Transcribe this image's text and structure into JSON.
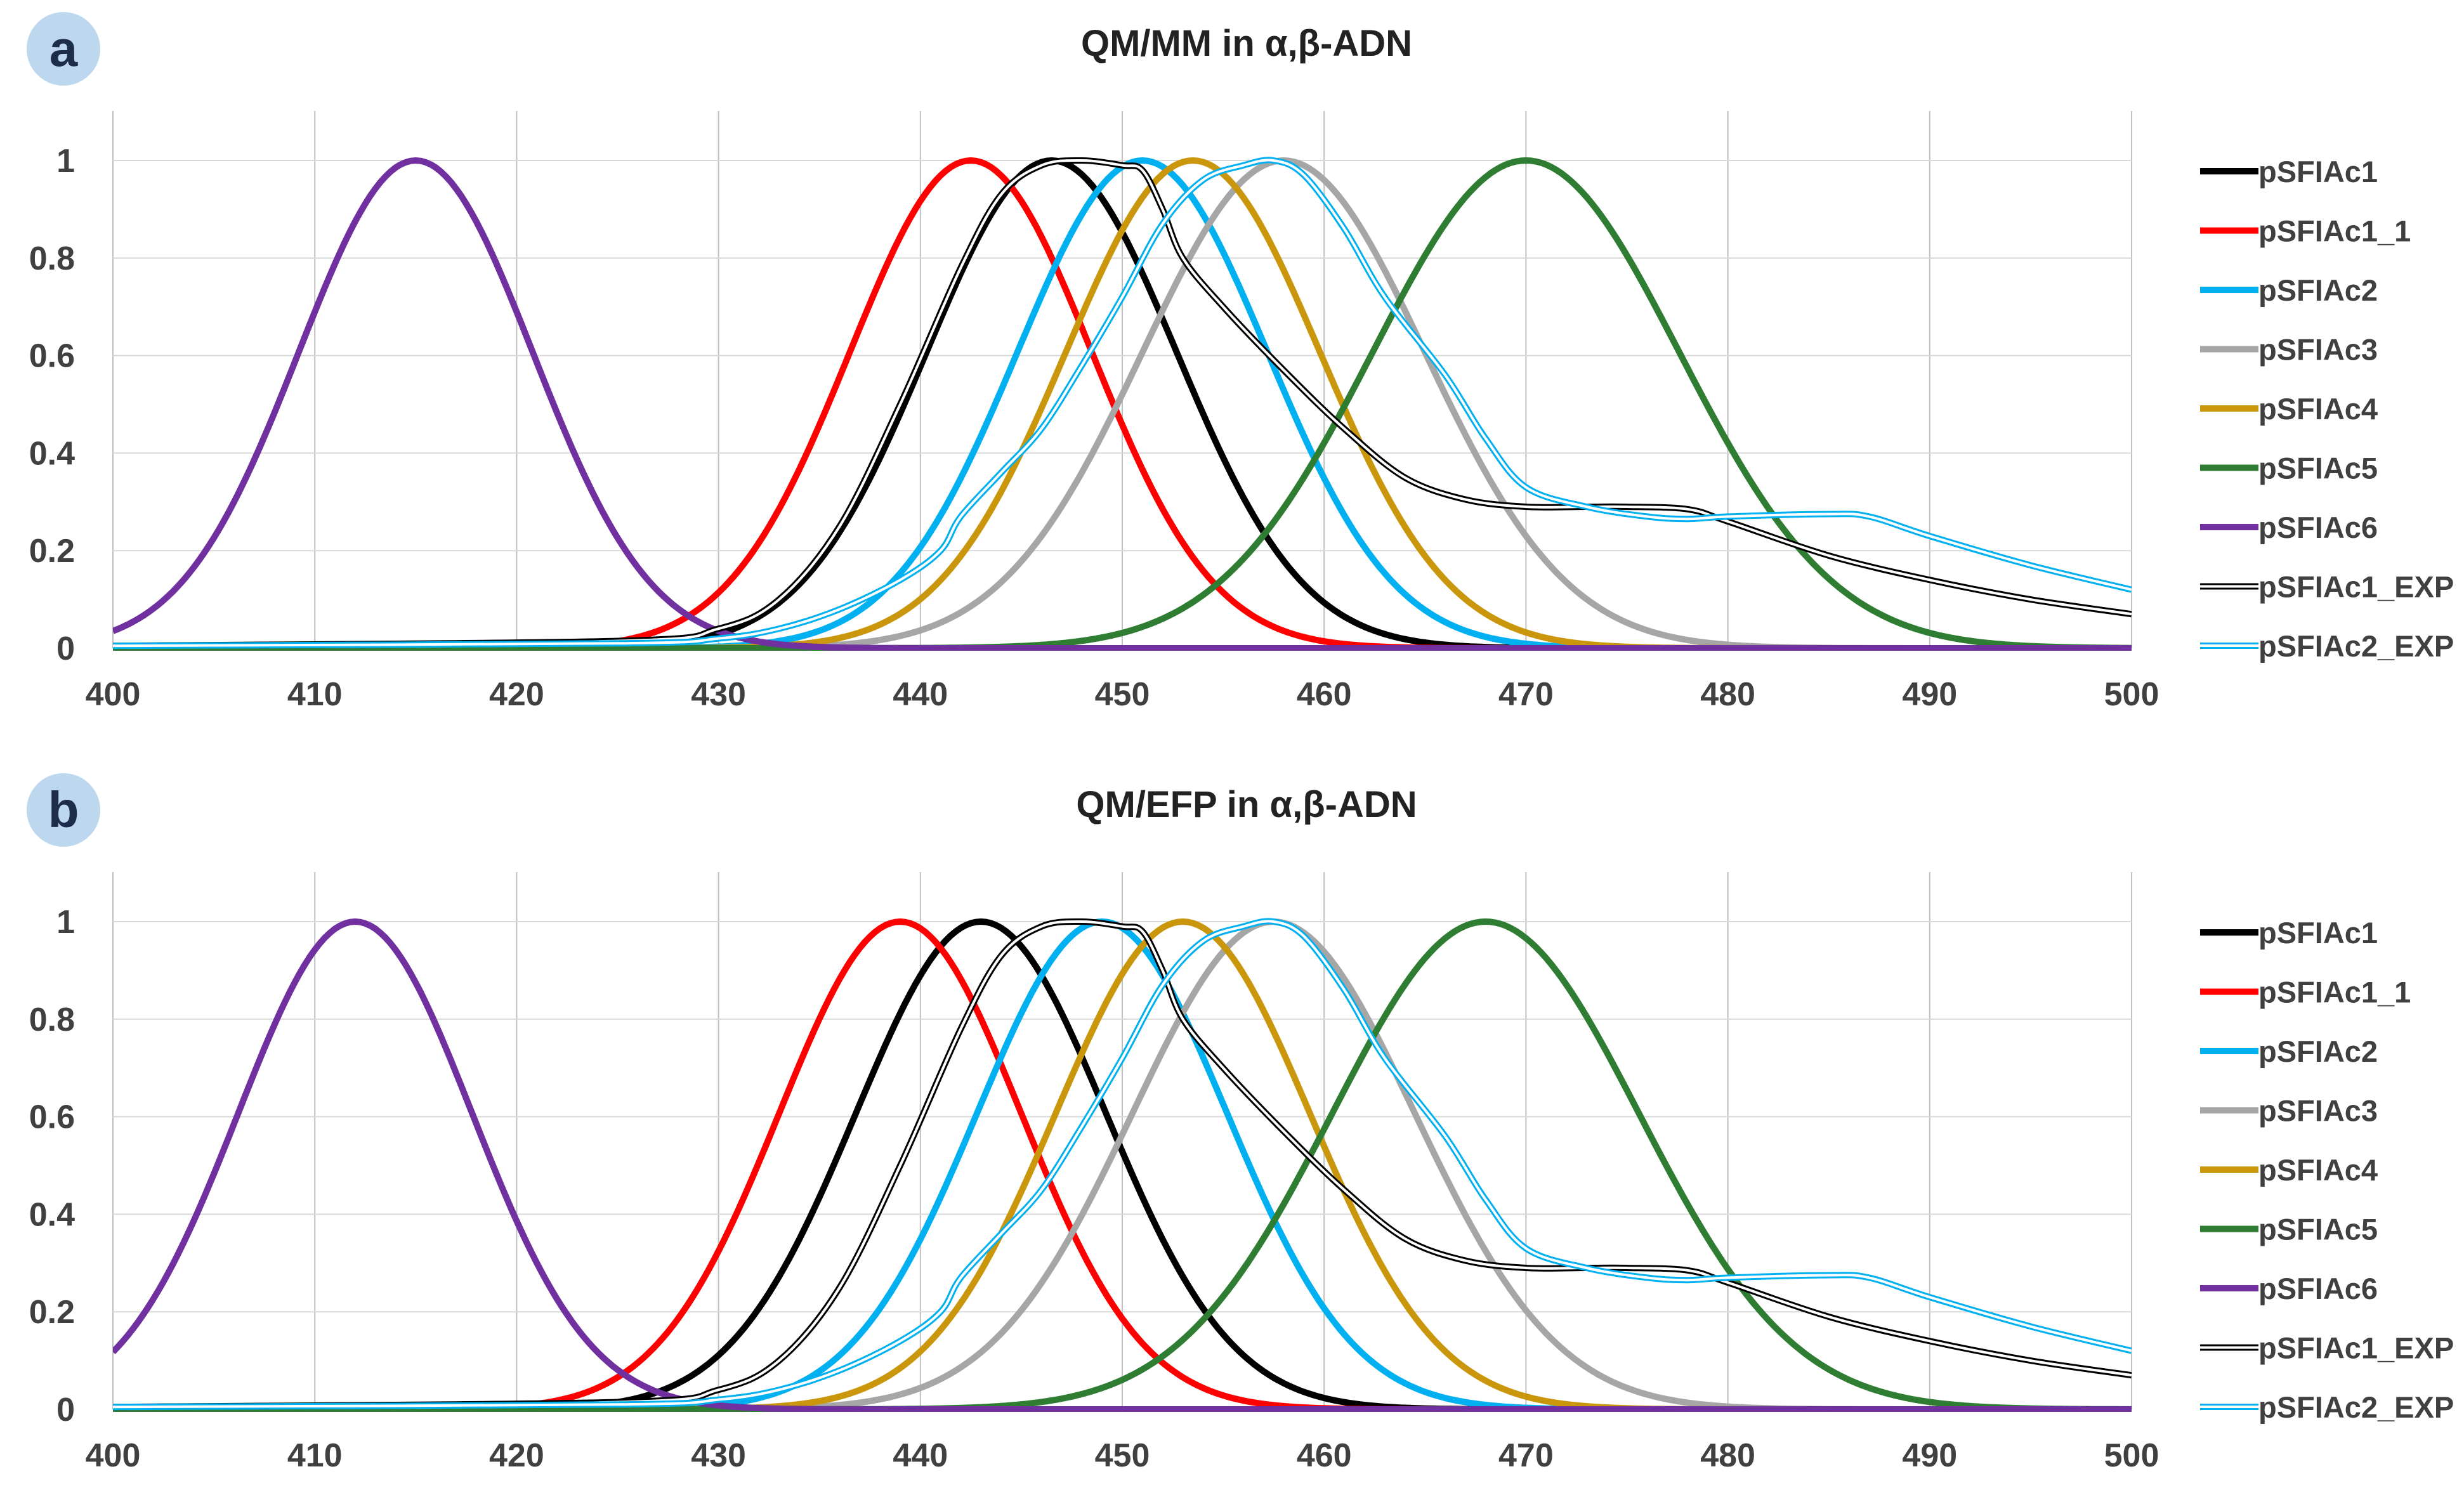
{
  "chart_data": [
    {
      "panel_label": "a",
      "type": "line",
      "title": "QM/MM in α,β-ADN",
      "xlabel": "",
      "ylabel": "",
      "xlim": [
        400,
        500
      ],
      "ylim": [
        0,
        1
      ],
      "x_ticks": [
        "400",
        "410",
        "420",
        "430",
        "440",
        "450",
        "460",
        "470",
        "480",
        "490",
        "500"
      ],
      "y_ticks": [
        "0",
        "0.2",
        "0.4",
        "0.6",
        "0.8",
        "1"
      ],
      "grid": "vertical",
      "legend_position": "right",
      "series": [
        {
          "name": "pSFIAc1",
          "color": "#000000",
          "style": "solid",
          "shape": "gauss",
          "center": 446.5,
          "sigma": 6.2
        },
        {
          "name": "pSFIAc1_1",
          "color": "#ff0000",
          "style": "solid",
          "shape": "gauss",
          "center": 442.5,
          "sigma": 6.0
        },
        {
          "name": "pSFIAc2",
          "color": "#00b0f0",
          "style": "solid",
          "shape": "gauss",
          "center": 451.0,
          "sigma": 6.2
        },
        {
          "name": "pSFIAc3",
          "color": "#a6a6a6",
          "style": "solid",
          "shape": "gauss",
          "center": 458.0,
          "sigma": 7.0
        },
        {
          "name": "pSFIAc4",
          "color": "#c9960c",
          "style": "solid",
          "shape": "gauss",
          "center": 453.5,
          "sigma": 6.3
        },
        {
          "name": "pSFIAc5",
          "color": "#2e7d32",
          "style": "solid",
          "shape": "gauss",
          "center": 470.0,
          "sigma": 7.6
        },
        {
          "name": "pSFIAc6",
          "color": "#7030a0",
          "style": "solid",
          "shape": "gauss",
          "center": 415.0,
          "sigma": 5.8
        },
        {
          "name": "pSFIAc1_EXP",
          "color": "#000000",
          "style": "double",
          "shape": "points",
          "x": [
            400,
            425,
            430,
            433,
            436,
            439,
            442,
            444,
            446,
            448,
            450,
            451,
            452,
            453,
            455,
            458,
            461,
            464,
            467,
            470,
            473,
            475,
            478,
            480,
            485,
            490,
            495,
            500
          ],
          "y": [
            0.005,
            0.015,
            0.04,
            0.1,
            0.25,
            0.5,
            0.78,
            0.93,
            0.99,
            1.0,
            0.99,
            0.98,
            0.9,
            0.8,
            0.7,
            0.57,
            0.45,
            0.35,
            0.305,
            0.29,
            0.29,
            0.29,
            0.285,
            0.26,
            0.19,
            0.14,
            0.1,
            0.07
          ]
        },
        {
          "name": "pSFIAc2_EXP",
          "color": "#00b0f0",
          "style": "double",
          "shape": "points",
          "x": [
            400,
            425,
            430,
            433,
            436,
            439,
            441,
            442,
            444,
            446,
            448,
            450,
            452,
            454,
            456,
            457.5,
            459,
            461,
            463,
            466,
            468,
            470,
            473,
            476,
            478,
            480,
            485,
            487,
            490,
            495,
            500
          ],
          "y": [
            0.005,
            0.01,
            0.02,
            0.04,
            0.08,
            0.14,
            0.2,
            0.27,
            0.36,
            0.45,
            0.58,
            0.72,
            0.87,
            0.96,
            0.99,
            1.0,
            0.97,
            0.86,
            0.72,
            0.56,
            0.43,
            0.33,
            0.29,
            0.27,
            0.265,
            0.27,
            0.275,
            0.27,
            0.23,
            0.17,
            0.12
          ]
        }
      ]
    },
    {
      "panel_label": "b",
      "type": "line",
      "title": "QM/EFP in α,β-ADN",
      "xlabel": "",
      "ylabel": "",
      "xlim": [
        400,
        500
      ],
      "ylim": [
        0,
        1
      ],
      "x_ticks": [
        "400",
        "410",
        "420",
        "430",
        "440",
        "450",
        "460",
        "470",
        "480",
        "490",
        "500"
      ],
      "y_ticks": [
        "0",
        "0.2",
        "0.4",
        "0.6",
        "0.8",
        "1"
      ],
      "grid": "vertical",
      "legend_position": "right",
      "series": [
        {
          "name": "pSFIAc1",
          "color": "#000000",
          "style": "solid",
          "shape": "gauss",
          "center": 443.0,
          "sigma": 6.2
        },
        {
          "name": "pSFIAc1_1",
          "color": "#ff0000",
          "style": "solid",
          "shape": "gauss",
          "center": 439.0,
          "sigma": 6.0
        },
        {
          "name": "pSFIAc2",
          "color": "#00b0f0",
          "style": "solid",
          "shape": "gauss",
          "center": 449.0,
          "sigma": 6.2
        },
        {
          "name": "pSFIAc3",
          "color": "#a6a6a6",
          "style": "solid",
          "shape": "gauss",
          "center": 457.5,
          "sigma": 7.0
        },
        {
          "name": "pSFIAc4",
          "color": "#c9960c",
          "style": "solid",
          "shape": "gauss",
          "center": 453.0,
          "sigma": 6.3
        },
        {
          "name": "pSFIAc5",
          "color": "#2e7d32",
          "style": "solid",
          "shape": "gauss",
          "center": 468.0,
          "sigma": 7.6
        },
        {
          "name": "pSFIAc6",
          "color": "#7030a0",
          "style": "solid",
          "shape": "gauss",
          "center": 412.0,
          "sigma": 5.8
        },
        {
          "name": "pSFIAc1_EXP",
          "color": "#000000",
          "style": "double",
          "shape": "points",
          "x": [
            400,
            425,
            430,
            433,
            436,
            439,
            442,
            444,
            446,
            448,
            450,
            451,
            452,
            453,
            455,
            458,
            461,
            464,
            467,
            470,
            473,
            475,
            478,
            480,
            485,
            490,
            495,
            500
          ],
          "y": [
            0.005,
            0.015,
            0.04,
            0.1,
            0.25,
            0.5,
            0.78,
            0.93,
            0.99,
            1.0,
            0.99,
            0.98,
            0.9,
            0.8,
            0.7,
            0.57,
            0.45,
            0.35,
            0.305,
            0.29,
            0.29,
            0.29,
            0.285,
            0.26,
            0.19,
            0.14,
            0.1,
            0.07
          ]
        },
        {
          "name": "pSFIAc2_EXP",
          "color": "#00b0f0",
          "style": "double",
          "shape": "points",
          "x": [
            400,
            425,
            430,
            433,
            436,
            439,
            441,
            442,
            444,
            446,
            448,
            450,
            452,
            454,
            456,
            457.5,
            459,
            461,
            463,
            466,
            468,
            470,
            473,
            476,
            478,
            480,
            485,
            487,
            490,
            495,
            500
          ],
          "y": [
            0.005,
            0.01,
            0.02,
            0.04,
            0.08,
            0.14,
            0.2,
            0.27,
            0.36,
            0.45,
            0.58,
            0.72,
            0.87,
            0.96,
            0.99,
            1.0,
            0.97,
            0.86,
            0.72,
            0.56,
            0.43,
            0.33,
            0.29,
            0.27,
            0.265,
            0.27,
            0.275,
            0.27,
            0.23,
            0.17,
            0.12
          ]
        }
      ]
    }
  ]
}
